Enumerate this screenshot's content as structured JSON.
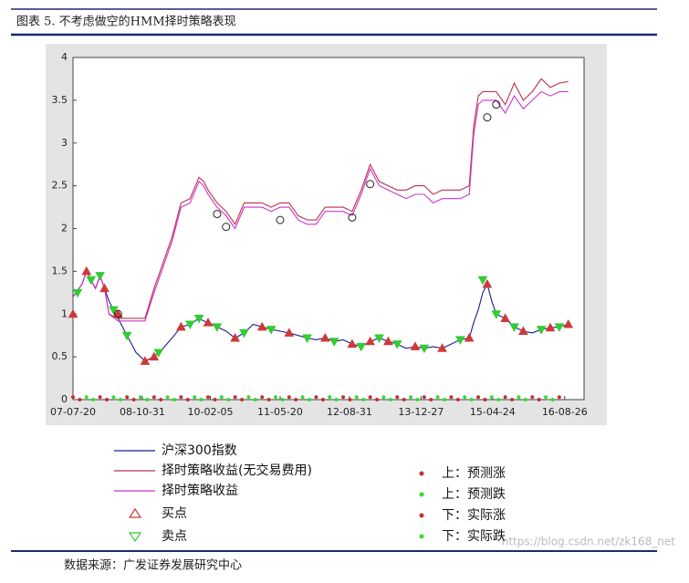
{
  "figure": {
    "title": "图表 5. 不考虑做空的HMM择时策略表现",
    "source": "数据来源：广发证券发展研究中心",
    "watermark": "https://blog.csdn.net/zk168_net"
  },
  "chart_data": {
    "type": "line",
    "x": [
      0,
      2,
      3,
      4,
      5,
      6,
      7,
      8,
      10,
      12,
      14,
      16,
      18,
      20,
      22,
      24,
      26,
      28,
      29,
      30,
      32,
      34,
      36,
      38,
      40,
      42,
      44,
      46,
      48,
      50,
      52,
      54,
      56,
      58,
      60,
      62,
      64,
      66,
      68,
      70,
      72,
      74,
      76,
      78,
      80,
      82,
      84,
      86,
      88,
      89,
      90,
      91,
      92,
      93,
      94,
      96,
      98,
      100,
      102,
      104,
      106,
      108,
      110
    ],
    "xlim": [
      0,
      113.5
    ],
    "xticks": [
      {
        "value": 0,
        "label": "07-07-20"
      },
      {
        "value": 15.4,
        "label": "08-10-31"
      },
      {
        "value": 30.5,
        "label": "10-02-05"
      },
      {
        "value": 46,
        "label": "11-05-20"
      },
      {
        "value": 61.4,
        "label": "12-08-31"
      },
      {
        "value": 77.3,
        "label": "13-12-27"
      },
      {
        "value": 93.2,
        "label": "15-04-24"
      },
      {
        "value": 109.2,
        "label": "16-08-26"
      }
    ],
    "ylim": [
      0,
      4
    ],
    "yticks": [
      0,
      0.5,
      1,
      1.5,
      2,
      2.5,
      3,
      3.5,
      4
    ],
    "series": [
      {
        "name": "沪深300指数",
        "color": "#1c1c8c",
        "values": [
          1.2,
          1.35,
          1.5,
          1.4,
          1.3,
          1.45,
          1.3,
          1.15,
          0.95,
          0.75,
          0.55,
          0.45,
          0.5,
          0.6,
          0.72,
          0.85,
          0.88,
          0.95,
          0.92,
          0.9,
          0.85,
          0.8,
          0.72,
          0.78,
          0.88,
          0.85,
          0.82,
          0.8,
          0.78,
          0.75,
          0.72,
          0.7,
          0.72,
          0.68,
          0.7,
          0.65,
          0.62,
          0.68,
          0.72,
          0.68,
          0.65,
          0.6,
          0.62,
          0.6,
          0.62,
          0.6,
          0.65,
          0.7,
          0.72,
          0.9,
          1.05,
          1.25,
          1.35,
          1.15,
          1.0,
          0.95,
          0.85,
          0.8,
          0.78,
          0.82,
          0.84,
          0.85,
          0.88
        ]
      },
      {
        "name": "择时策略收益(无交易费用)",
        "color": "#c0304a",
        "values": [
          1.2,
          1.35,
          1.5,
          1.4,
          1.3,
          1.45,
          1.3,
          1.0,
          0.95,
          0.95,
          0.95,
          0.95,
          1.3,
          1.6,
          1.9,
          2.3,
          2.35,
          2.6,
          2.55,
          2.45,
          2.3,
          2.2,
          2.05,
          2.3,
          2.3,
          2.3,
          2.25,
          2.3,
          2.3,
          2.15,
          2.1,
          2.1,
          2.25,
          2.25,
          2.25,
          2.2,
          2.45,
          2.75,
          2.55,
          2.5,
          2.45,
          2.45,
          2.5,
          2.5,
          2.4,
          2.45,
          2.45,
          2.45,
          2.5,
          3.2,
          3.55,
          3.6,
          3.6,
          3.6,
          3.6,
          3.45,
          3.7,
          3.5,
          3.6,
          3.75,
          3.65,
          3.7,
          3.72
        ]
      },
      {
        "name": "择时策略收益",
        "color": "#cc33cc",
        "values": [
          1.2,
          1.35,
          1.5,
          1.4,
          1.3,
          1.45,
          1.3,
          1.0,
          0.92,
          0.92,
          0.92,
          0.92,
          1.25,
          1.55,
          1.85,
          2.25,
          2.3,
          2.55,
          2.5,
          2.4,
          2.25,
          2.15,
          2.0,
          2.25,
          2.25,
          2.25,
          2.2,
          2.25,
          2.25,
          2.1,
          2.05,
          2.05,
          2.2,
          2.2,
          2.2,
          2.15,
          2.4,
          2.7,
          2.5,
          2.45,
          2.4,
          2.35,
          2.4,
          2.4,
          2.3,
          2.35,
          2.35,
          2.35,
          2.4,
          3.1,
          3.45,
          3.5,
          3.5,
          3.5,
          3.5,
          3.35,
          3.55,
          3.4,
          3.5,
          3.6,
          3.55,
          3.6,
          3.6
        ]
      }
    ],
    "markers": [
      {
        "name": "买点",
        "shape": "triangle-up",
        "color": "#d03838",
        "x": [
          0,
          3,
          7,
          10,
          16,
          18,
          24,
          30,
          36,
          42,
          48,
          56,
          62,
          66,
          70,
          76,
          82,
          88,
          92,
          96,
          100,
          106,
          110
        ],
        "values": [
          1.0,
          1.5,
          1.3,
          1.0,
          0.45,
          0.5,
          0.85,
          0.9,
          0.72,
          0.85,
          0.78,
          0.72,
          0.65,
          0.68,
          0.68,
          0.62,
          0.6,
          0.72,
          1.35,
          0.95,
          0.8,
          0.84,
          0.88
        ]
      },
      {
        "name": "卖点",
        "shape": "triangle-down",
        "color": "#33cc33",
        "x": [
          1,
          4,
          6,
          9,
          12,
          19,
          26,
          28,
          32,
          38,
          44,
          52,
          58,
          64,
          68,
          72,
          78,
          86,
          91,
          94,
          98,
          104,
          108
        ],
        "values": [
          1.25,
          1.4,
          1.45,
          1.05,
          0.75,
          0.55,
          0.88,
          0.95,
          0.85,
          0.78,
          0.82,
          0.72,
          0.68,
          0.62,
          0.72,
          0.65,
          0.6,
          0.7,
          1.4,
          1.0,
          0.85,
          0.82,
          0.85
        ]
      },
      {
        "shape": "circle",
        "color": "#222222",
        "x": [
          10,
          32,
          34,
          46,
          62,
          66,
          92,
          94
        ],
        "values": [
          1.0,
          2.17,
          2.02,
          2.1,
          2.13,
          2.52,
          3.3,
          3.45
        ]
      },
      {
        "name": "上：预测涨",
        "shape": "dot",
        "color": "#c03030",
        "x": [
          0,
          6,
          12,
          18,
          24,
          30,
          36,
          42,
          48,
          54,
          60,
          66,
          72,
          78,
          84,
          90,
          96,
          102,
          108
        ],
        "values": [
          0.03,
          0.03,
          0.03,
          0.03,
          0.03,
          0.03,
          0.03,
          0.03,
          0.03,
          0.03,
          0.03,
          0.03,
          0.03,
          0.03,
          0.03,
          0.03,
          0.03,
          0.03,
          0.03
        ]
      },
      {
        "name": "上：预测跌",
        "shape": "dot",
        "color": "#33dd33",
        "x": [
          3,
          9,
          15,
          21,
          27,
          33,
          39,
          45,
          51,
          57,
          63,
          69,
          75,
          81,
          87,
          93,
          99,
          105
        ],
        "values": [
          0.03,
          0.03,
          0.03,
          0.03,
          0.03,
          0.03,
          0.03,
          0.03,
          0.03,
          0.03,
          0.03,
          0.03,
          0.03,
          0.03,
          0.03,
          0.03,
          0.03,
          0.03
        ]
      },
      {
        "name": "下：实际涨",
        "shape": "dot",
        "color": "#c03030",
        "x": [
          1.5,
          7.5,
          13.5,
          19.5,
          25.5,
          31.5,
          37.5,
          43.5,
          49.5,
          55.5,
          61.5,
          67.5,
          73.5,
          79.5,
          85.5,
          91.5,
          97.5,
          103.5
        ],
        "values": [
          0,
          0,
          0,
          0,
          0,
          0,
          0,
          0,
          0,
          0,
          0,
          0,
          0,
          0,
          0,
          0,
          0,
          0
        ]
      },
      {
        "name": "下：实际跌",
        "shape": "dot",
        "color": "#33dd33",
        "x": [
          4.5,
          10.5,
          16.5,
          22.5,
          28.5,
          34.5,
          40.5,
          46.5,
          52.5,
          58.5,
          64.5,
          70.5,
          76.5,
          82.5,
          88.5,
          94.5,
          100.5,
          106.5
        ],
        "values": [
          0,
          0,
          0,
          0,
          0,
          0,
          0,
          0,
          0,
          0,
          0,
          0,
          0,
          0,
          0,
          0,
          0,
          0
        ]
      }
    ]
  }
}
